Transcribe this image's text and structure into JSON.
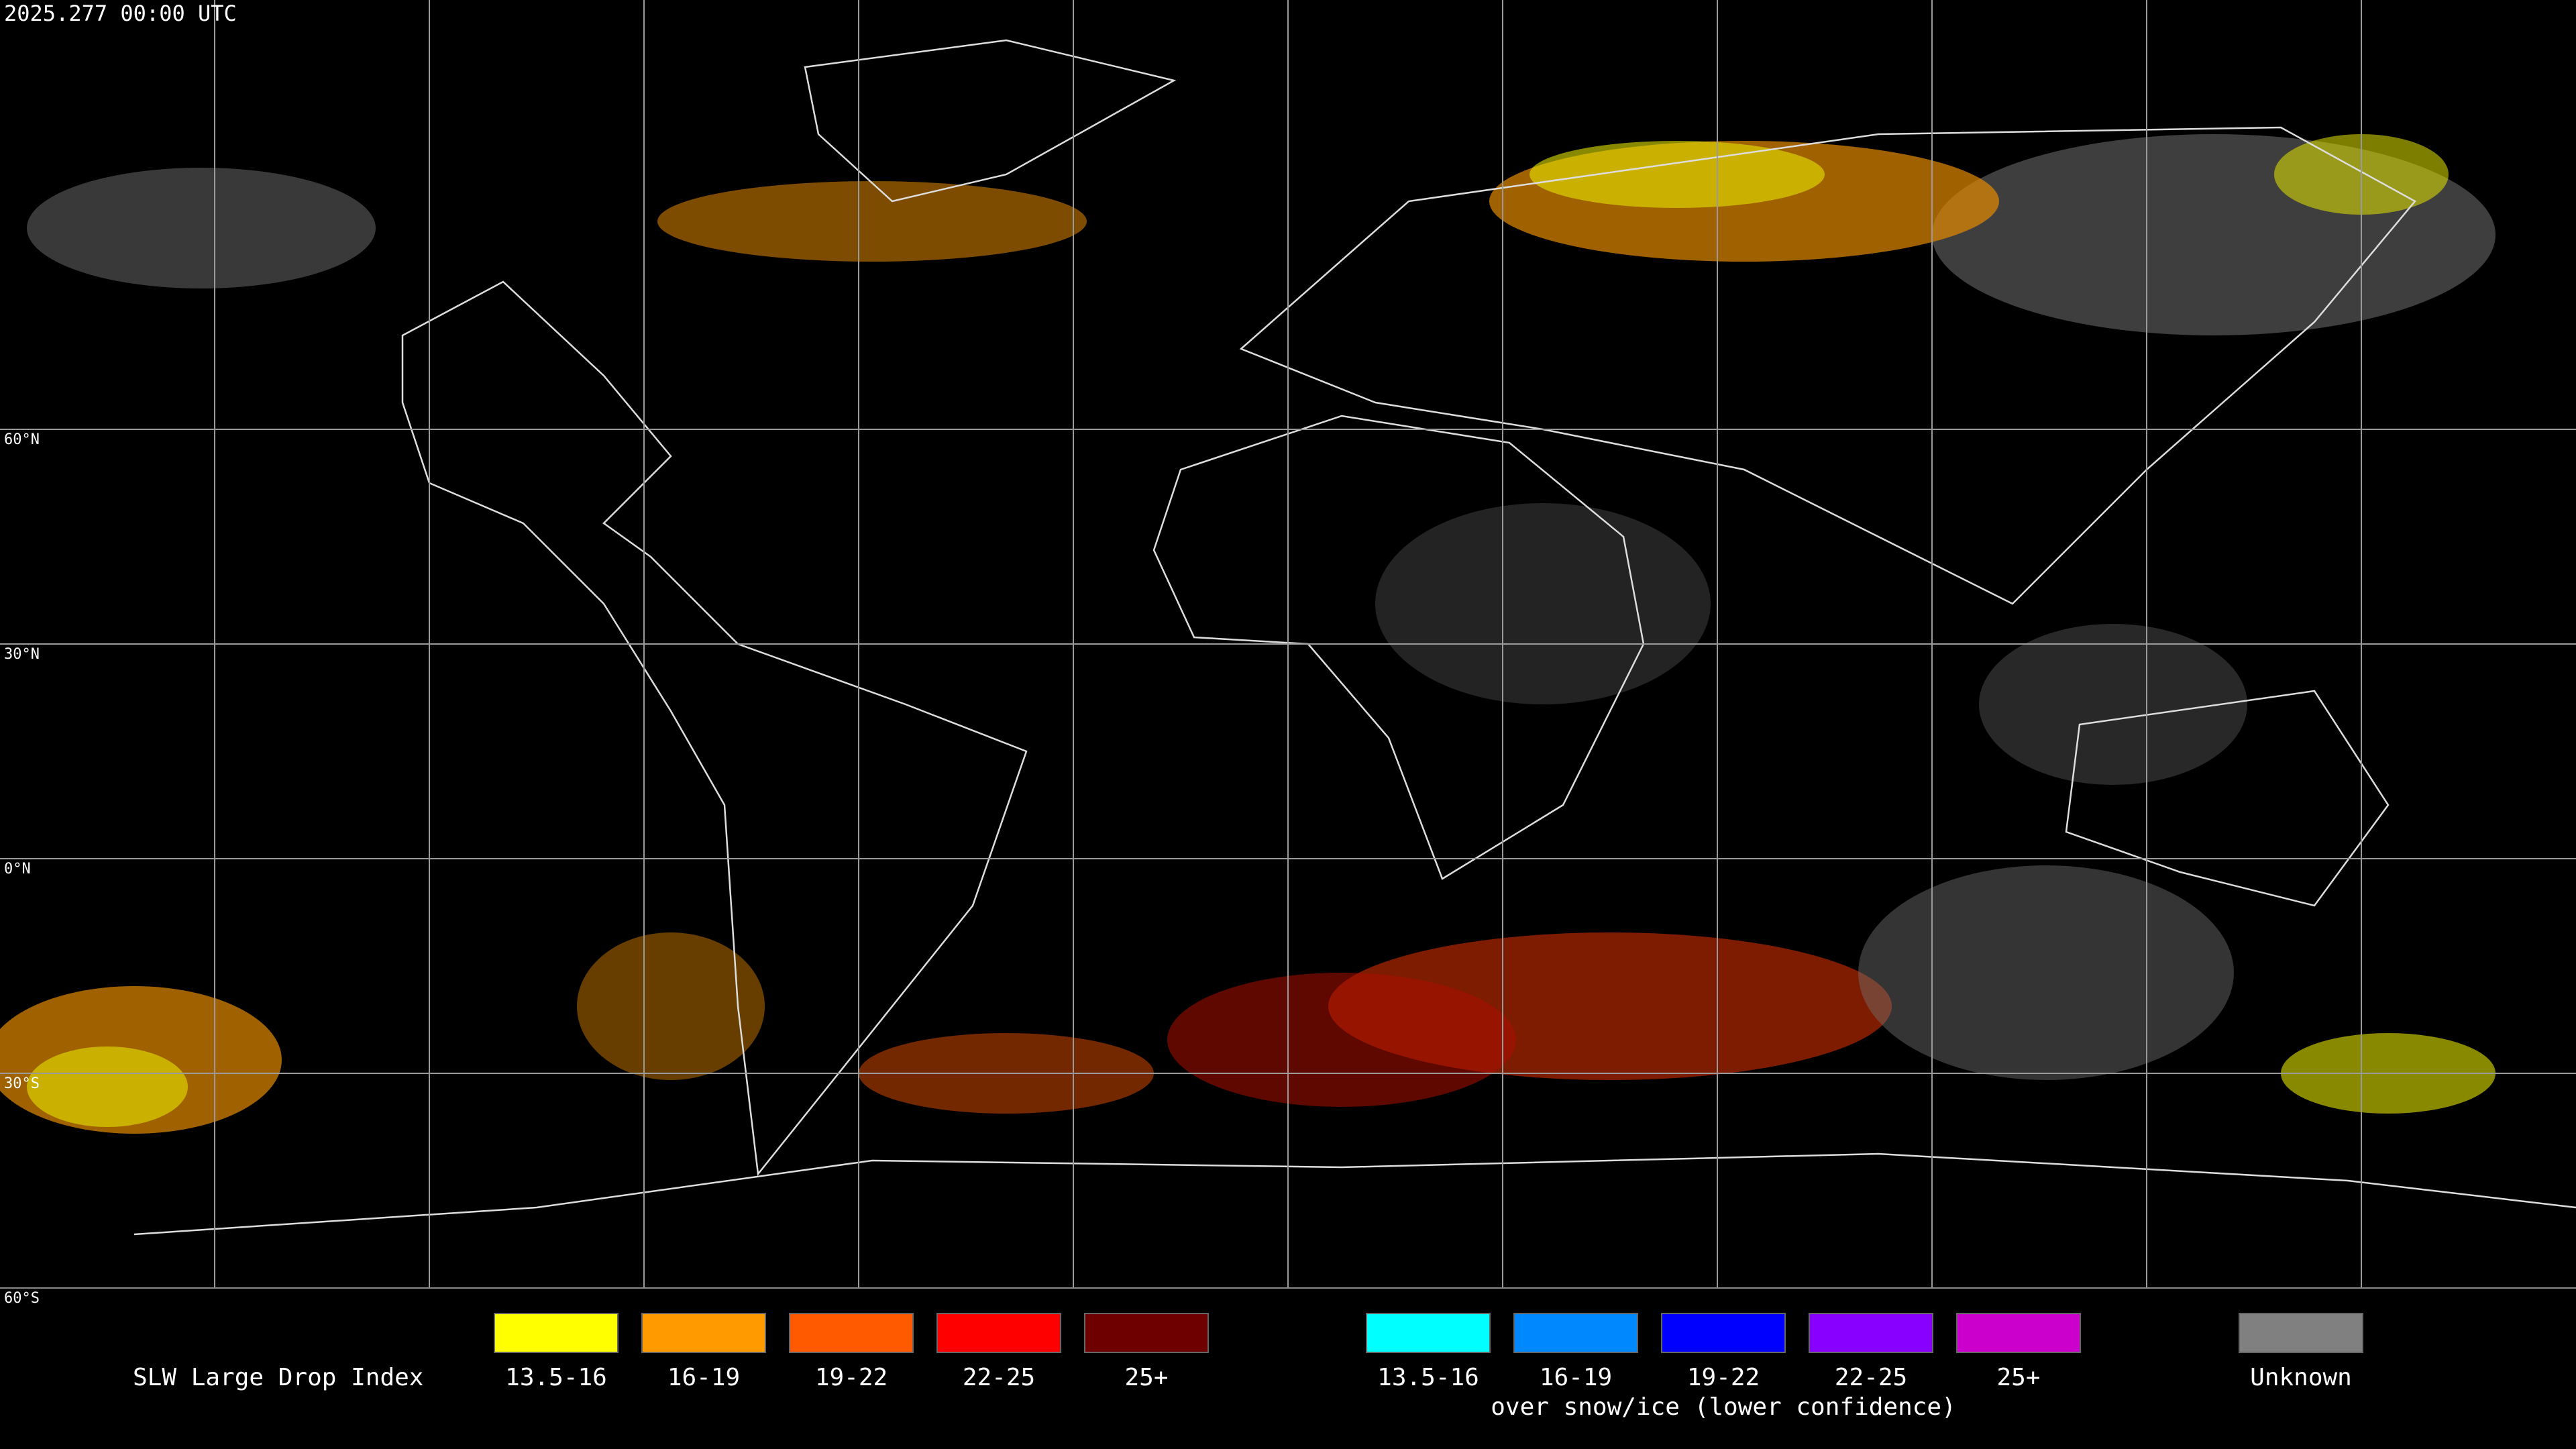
{
  "header": {
    "title": "2025.277 00:00 UTC"
  },
  "map": {
    "lat_labels": [
      "60°N",
      "30°N",
      "0°N",
      "30°S",
      "60°S"
    ]
  },
  "legend": {
    "title": "SLW Large Drop Index",
    "groups": [
      {
        "items": [
          {
            "label": "13.5-16",
            "color": "#ffff00"
          },
          {
            "label": "16-19",
            "color": "#ff9a00"
          },
          {
            "label": "19-22",
            "color": "#ff5a00"
          },
          {
            "label": "22-25",
            "color": "#ff0000"
          },
          {
            "label": "25+",
            "color": "#6e0000"
          }
        ]
      },
      {
        "items": [
          {
            "label": "13.5-16",
            "color": "#00ffff"
          },
          {
            "label": "16-19",
            "color": "#0088ff"
          },
          {
            "label": "19-22",
            "color": "#0000ff"
          },
          {
            "label": "22-25",
            "color": "#8800ff"
          },
          {
            "label": "25+",
            "color": "#cc00cc"
          }
        ],
        "caption": "over snow/ice (lower confidence)"
      }
    ],
    "unknown": {
      "label": "Unknown",
      "color": "#808080"
    }
  }
}
